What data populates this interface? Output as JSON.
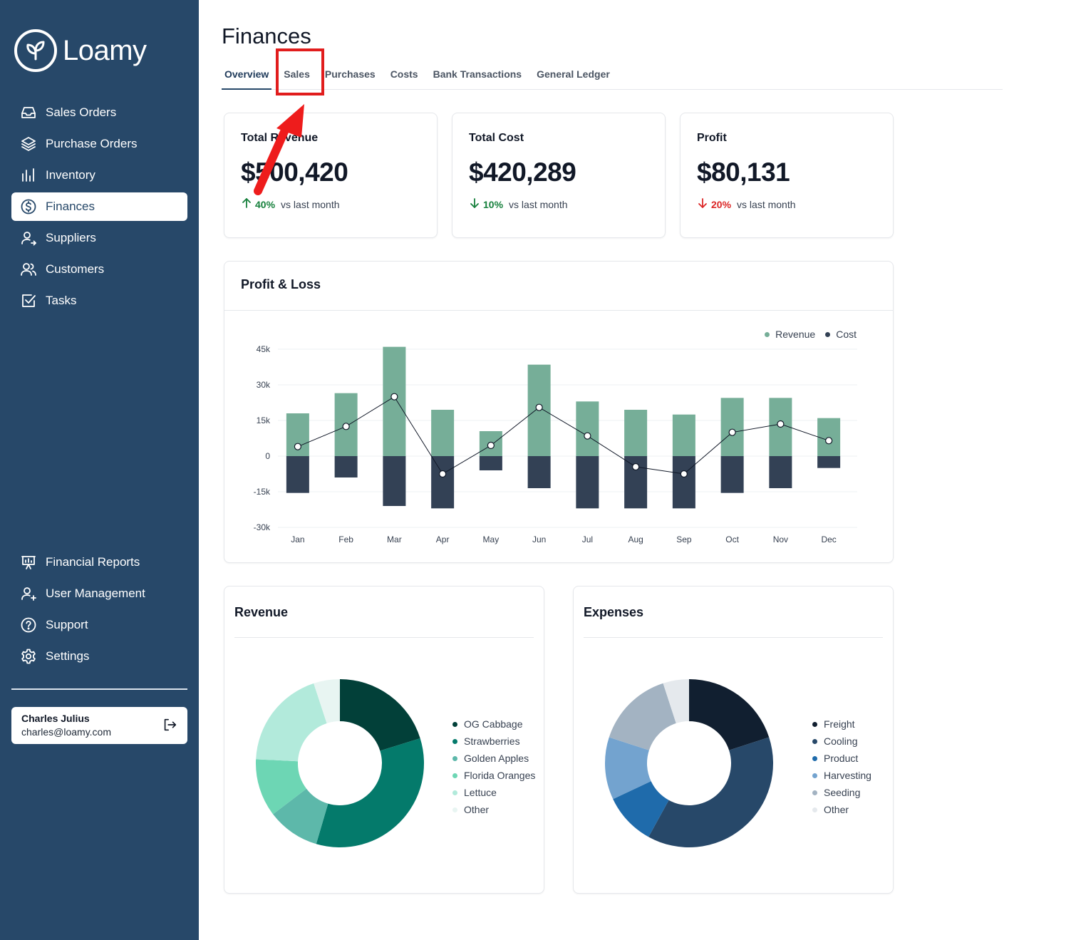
{
  "app": {
    "name": "Loamy"
  },
  "sidebar": {
    "top_items": [
      {
        "label": "Sales Orders",
        "icon": "inbox-icon",
        "active": false
      },
      {
        "label": "Purchase Orders",
        "icon": "layers-icon",
        "active": false
      },
      {
        "label": "Inventory",
        "icon": "bar-chart-icon",
        "active": false
      },
      {
        "label": "Finances",
        "icon": "dollar-circle-icon",
        "active": true
      },
      {
        "label": "Suppliers",
        "icon": "user-arrow-icon",
        "active": false
      },
      {
        "label": "Customers",
        "icon": "users-icon",
        "active": false
      },
      {
        "label": "Tasks",
        "icon": "checkbox-icon",
        "active": false
      }
    ],
    "bottom_items": [
      {
        "label": "Financial Reports",
        "icon": "presentation-icon"
      },
      {
        "label": "User Management",
        "icon": "user-plus-icon"
      },
      {
        "label": "Support",
        "icon": "help-circle-icon"
      },
      {
        "label": "Settings",
        "icon": "gear-icon"
      }
    ],
    "user": {
      "name": "Charles Julius",
      "email": "charles@loamy.com"
    }
  },
  "page": {
    "title": "Finances",
    "tabs": [
      {
        "label": "Overview",
        "active": true
      },
      {
        "label": "Sales",
        "active": false
      },
      {
        "label": "Purchases",
        "active": false
      },
      {
        "label": "Costs",
        "active": false
      },
      {
        "label": "Bank Transactions",
        "active": false
      },
      {
        "label": "General Ledger",
        "active": false
      }
    ]
  },
  "stats": [
    {
      "title": "Total Revenue",
      "value": "$500,420",
      "delta": "40%",
      "direction": "up",
      "comparison": "vs last month",
      "color": "#16803c"
    },
    {
      "title": "Total Cost",
      "value": "$420,289",
      "delta": "10%",
      "direction": "down",
      "comparison": "vs last month",
      "color": "#16803c"
    },
    {
      "title": "Profit",
      "value": "$80,131",
      "delta": "20%",
      "direction": "down",
      "comparison": "vs last month",
      "color": "#dc2626"
    }
  ],
  "profit_loss": {
    "title": "Profit & Loss",
    "legend": {
      "revenue": "Revenue",
      "cost": "Cost"
    }
  },
  "chart_data": [
    {
      "type": "bar",
      "title": "Profit & Loss",
      "categories": [
        "Jan",
        "Feb",
        "Mar",
        "Apr",
        "May",
        "Jun",
        "Jul",
        "Aug",
        "Sep",
        "Oct",
        "Nov",
        "Dec"
      ],
      "series": [
        {
          "name": "Revenue",
          "color": "#76ae98",
          "values": [
            18000,
            26500,
            46000,
            19500,
            10500,
            38500,
            23000,
            19500,
            17500,
            24500,
            24500,
            16000
          ]
        },
        {
          "name": "Cost",
          "color": "#334155",
          "values": [
            -15500,
            -9000,
            -21000,
            -22000,
            -6000,
            -13500,
            -22000,
            -22000,
            -22000,
            -15500,
            -13500,
            -5000
          ]
        },
        {
          "name": "Net",
          "type": "line",
          "values": [
            4000,
            12500,
            25000,
            -7500,
            4500,
            20500,
            8500,
            -4500,
            -7500,
            10000,
            13500,
            6500
          ]
        }
      ],
      "yticks": [
        "45k",
        "30k",
        "15k",
        "0",
        "-15k",
        "-30k"
      ],
      "ylim": [
        -30000,
        45000
      ],
      "legend": "top-right",
      "grid": true
    },
    {
      "type": "pie",
      "title": "Revenue",
      "labels": [
        "OG Cabbage",
        "Strawberries",
        "Golden Apples",
        "Florida Oranges",
        "Lettuce",
        "Other"
      ],
      "values": [
        20,
        34,
        10,
        11,
        19,
        5
      ],
      "colors": [
        "#024039",
        "#047a6b",
        "#5db8aa",
        "#6dd6b4",
        "#b2eadb",
        "#e8f5f2"
      ]
    },
    {
      "type": "pie",
      "title": "Expenses",
      "labels": [
        "Freight",
        "Cooling",
        "Product",
        "Harvesting",
        "Seeding",
        "Other"
      ],
      "values": [
        20,
        38,
        10,
        12,
        15,
        5
      ],
      "colors": [
        "#111f30",
        "#274869",
        "#1f6bab",
        "#73a3cf",
        "#a3b3c2",
        "#e5e9ed"
      ]
    }
  ]
}
